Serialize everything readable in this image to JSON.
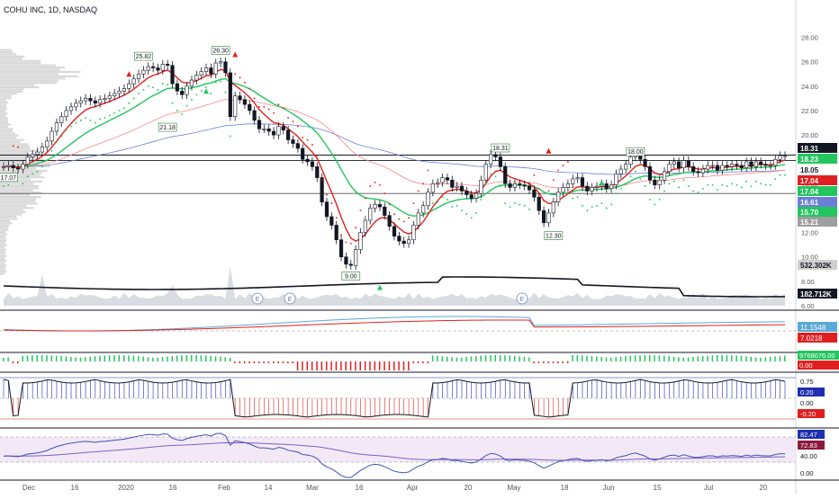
{
  "header": {
    "title": "COHU INC, 1D, NASDAQ"
  },
  "colors": {
    "up": "#131722",
    "down": "#131722",
    "upFill": "#ffffff",
    "downFill": "#131722",
    "red": "#e02020",
    "green": "#22c55e",
    "blue": "#6b7fd7",
    "gray": "#9e9e9e",
    "pink": "#f48a8a",
    "purple": "#7b61c7"
  },
  "chart_data": {
    "type": "line",
    "series": [
      {
        "values": [
          17.4,
          17.5,
          17.3,
          17.2,
          17.6,
          18.2,
          18.4,
          18.6,
          19.0,
          19.5,
          20.3,
          21.0,
          21.5,
          22.0,
          22.3,
          22.6,
          22.8,
          23.0,
          22.8,
          22.6,
          22.9,
          23.0,
          23.2,
          23.4,
          23.6,
          23.8,
          24.2,
          24.6,
          25.0,
          25.3,
          25.6,
          25.5,
          25.3,
          25.8,
          25.7,
          24.2,
          23.6,
          23.3,
          24.0,
          24.5,
          24.9,
          25.2,
          25.5,
          25.0,
          25.9,
          26.0,
          25.1,
          21.5,
          23.2,
          22.9,
          22.5,
          22.0,
          21.2,
          20.5,
          20.5,
          20.3,
          20.0,
          20.7,
          20.4,
          19.6,
          19.3,
          18.9,
          18.0,
          17.8,
          17.4,
          16.5,
          14.5,
          13.3,
          12.6,
          11.4,
          10.0,
          9.4,
          9.3,
          10.6,
          12.0,
          13.0,
          14.0,
          14.3,
          14.1,
          13.4,
          12.5,
          11.7,
          11.3,
          11.1,
          11.4,
          12.6,
          13.6,
          14.2,
          15.3,
          16.0,
          16.1,
          16.5,
          16.3,
          15.7,
          15.8,
          15.4,
          15.1,
          14.8,
          15.2,
          16.3,
          17.6,
          18.4,
          18.2,
          17.4,
          16.0,
          15.7,
          16.0,
          15.9,
          15.8,
          15.5,
          14.9,
          13.8,
          12.8,
          13.6,
          14.5,
          15.3,
          15.7,
          16.0,
          16.4,
          16.5,
          15.8,
          15.4,
          15.7,
          15.8,
          16.0,
          15.6,
          15.9,
          16.8,
          17.2,
          17.6,
          18.2,
          18.6,
          18.0,
          17.4,
          16.3,
          15.9,
          16.3,
          17.0,
          17.6,
          17.8,
          17.3,
          17.9,
          17.4,
          17.0,
          16.9,
          17.2,
          17.5,
          17.5,
          17.1,
          17.5,
          17.4,
          17.6,
          17.5,
          17.3,
          17.8,
          17.4,
          17.8,
          17.6,
          17.5,
          17.5,
          18.0,
          18.3,
          18.31
        ]
      }
    ],
    "ylim": [
      6,
      29
    ],
    "yticks": [
      "28.00",
      "26.00",
      "24.00",
      "22.00",
      "20.00",
      "18.00",
      "16.00",
      "14.00",
      "12.00",
      "10.00",
      "8.00",
      "6.00"
    ],
    "xticks": [
      "Dec",
      "16",
      "2020",
      "16",
      "Feb",
      "14",
      "Mar",
      "16",
      "Apr",
      "20",
      "May",
      "18",
      "Jun",
      "15",
      "Jul",
      "20"
    ],
    "annotations": [
      "25.82",
      "26.30",
      "21.18",
      "17.07",
      "9.00",
      "18.31",
      "18.00",
      "12.30"
    ],
    "price_labels": [
      {
        "text": "18.31",
        "bg": "#131722",
        "fg": "#ffffff"
      },
      {
        "text": "18.23",
        "bg": "#22c55e",
        "fg": "#ffffff"
      },
      {
        "text": "18.05",
        "bg": "#ffffff",
        "fg": "#131722"
      },
      {
        "text": "17.04",
        "bg": "#e02020",
        "fg": "#ffffff"
      },
      {
        "text": "17.04",
        "bg": "#22c55e",
        "fg": "#ffffff"
      },
      {
        "text": "16.61",
        "bg": "#6b7fd7",
        "fg": "#ffffff"
      },
      {
        "text": "15.70",
        "bg": "#22c55e",
        "fg": "#ffffff"
      },
      {
        "text": "15.21",
        "bg": "#9e9e9e",
        "fg": "#ffffff"
      },
      {
        "text": "532.302K",
        "bg": "#cfcfcf",
        "fg": "#131722"
      },
      {
        "text": "182.712K",
        "bg": "#131722",
        "fg": "#ffffff"
      }
    ],
    "macd_labels": [
      {
        "text": "11.1548",
        "bg": "#5aa9d6",
        "fg": "#ffffff"
      },
      {
        "text": "7.0218",
        "bg": "#e02020",
        "fg": "#ffffff"
      }
    ],
    "hist_labels": [
      {
        "text": "9768076.00",
        "bg": "#22c55e",
        "fg": "#ffffff"
      },
      {
        "text": "0.00",
        "bg": "#e02020",
        "fg": "#ffffff"
      }
    ],
    "osc_labels": [
      {
        "text": "0.75",
        "bg": "#ffffff",
        "fg": "#131722"
      },
      {
        "text": "0.20",
        "bg": "#1f2fb0",
        "fg": "#ffffff"
      },
      {
        "text": "0.00",
        "bg": "#ffffff",
        "fg": "#131722"
      },
      {
        "text": "-0.20",
        "bg": "#e02020",
        "fg": "#ffffff"
      }
    ],
    "rsi_labels": [
      {
        "text": "82.47",
        "bg": "#1f2fb0",
        "fg": "#ffffff"
      },
      {
        "text": "72.83",
        "bg": "#8b1a3c",
        "fg": "#ffffff"
      },
      {
        "text": "40.00",
        "bg": "#ffffff",
        "fg": "#131722"
      },
      {
        "text": "0.00",
        "bg": "#ffffff",
        "fg": "#131722"
      }
    ]
  }
}
